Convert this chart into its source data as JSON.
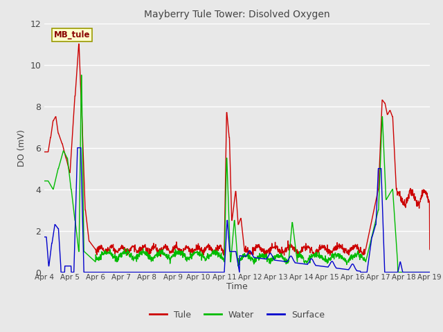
{
  "title": "Mayberry Tule Tower: Disolved Oxygen",
  "ylabel": "DO (mV)",
  "xlabel": "Time",
  "xlim": [
    0,
    15
  ],
  "ylim": [
    0,
    12
  ],
  "yticks": [
    0,
    2,
    4,
    6,
    8,
    10,
    12
  ],
  "xtick_labels": [
    "Apr 4",
    "Apr 5",
    "Apr 6",
    "Apr 7",
    "Apr 8",
    "Apr 9",
    "Apr 10",
    "Apr 11",
    "Apr 12",
    "Apr 13",
    "Apr 14",
    "Apr 15",
    "Apr 16",
    "Apr 17",
    "Apr 18",
    "Apr 19"
  ],
  "plot_bg_color": "#e8e8e8",
  "fig_bg_color": "#e8e8e8",
  "grid_color": "#ffffff",
  "title_color": "#444444",
  "tick_color": "#444444",
  "legend_label": "MB_tule",
  "legend_fg": "#880000",
  "legend_bg": "#ffffcc",
  "legend_border": "#999900",
  "series_colors": [
    "#cc0000",
    "#00bb00",
    "#0000cc"
  ],
  "series_names": [
    "Tule",
    "Water",
    "Surface"
  ],
  "linewidth": 1.0
}
